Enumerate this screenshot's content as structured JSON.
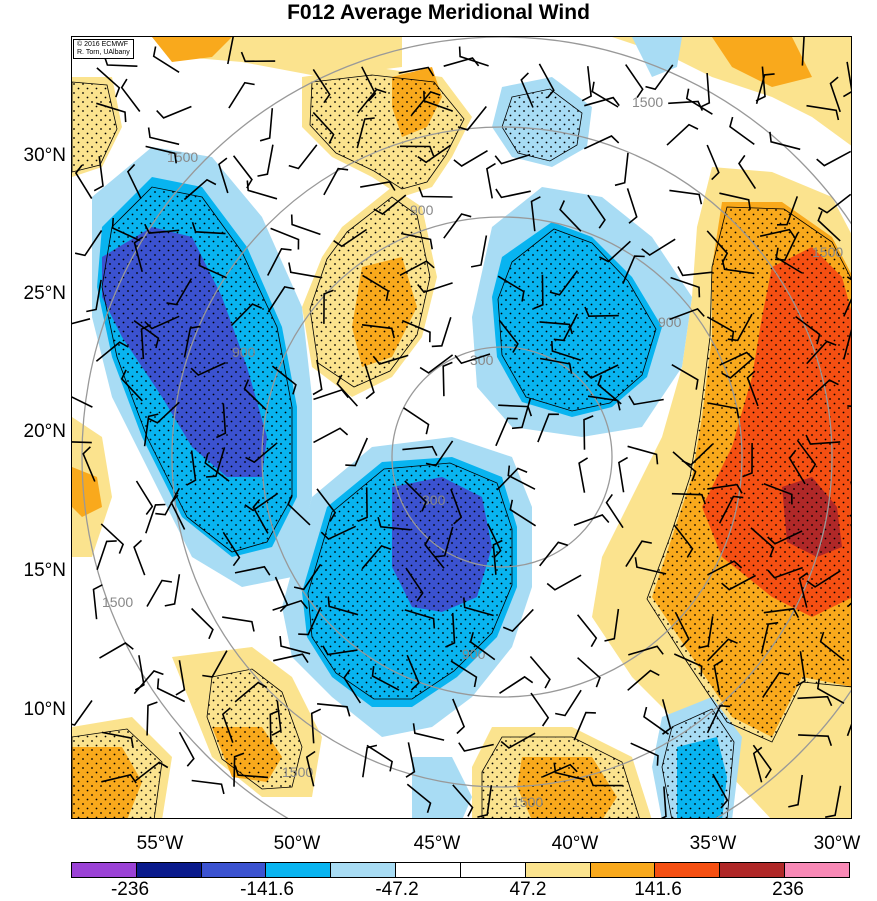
{
  "title": "F012 Average Meridional Wind",
  "credit": {
    "line1": "© 2016 ECMWF",
    "line2": "R. Torn, UAlbany"
  },
  "lat_labels": [
    "30°N",
    "25°N",
    "20°N",
    "15°N",
    "10°N"
  ],
  "lon_labels": [
    "55°W",
    "50°W",
    "45°W",
    "40°W",
    "35°W",
    "30°W"
  ],
  "contour_labels": [
    "300",
    "300",
    "900",
    "900",
    "900",
    "900",
    "1500",
    "1500",
    "1500",
    "1500",
    "1500",
    "1500"
  ],
  "colorbar": {
    "colors": [
      "#9b42d6",
      "#0a1a8c",
      "#3b52d0",
      "#08b4f0",
      "#a8dcf4",
      "#ffffff",
      "#ffffff",
      "#fbe38e",
      "#f9a91c",
      "#f54f12",
      "#b02828",
      "#f889b6"
    ],
    "labels": [
      "-236",
      "-141.6",
      "-47.2",
      "47.2",
      "141.6",
      "236"
    ]
  },
  "fill_colors": {
    "light_blue": "#a8dcf4",
    "blue": "#08b4f0",
    "dark_blue": "#3b52d0",
    "yellow": "#fbe38e",
    "orange": "#f9a91c",
    "red": "#f54f12",
    "dark_red": "#b02828"
  }
}
